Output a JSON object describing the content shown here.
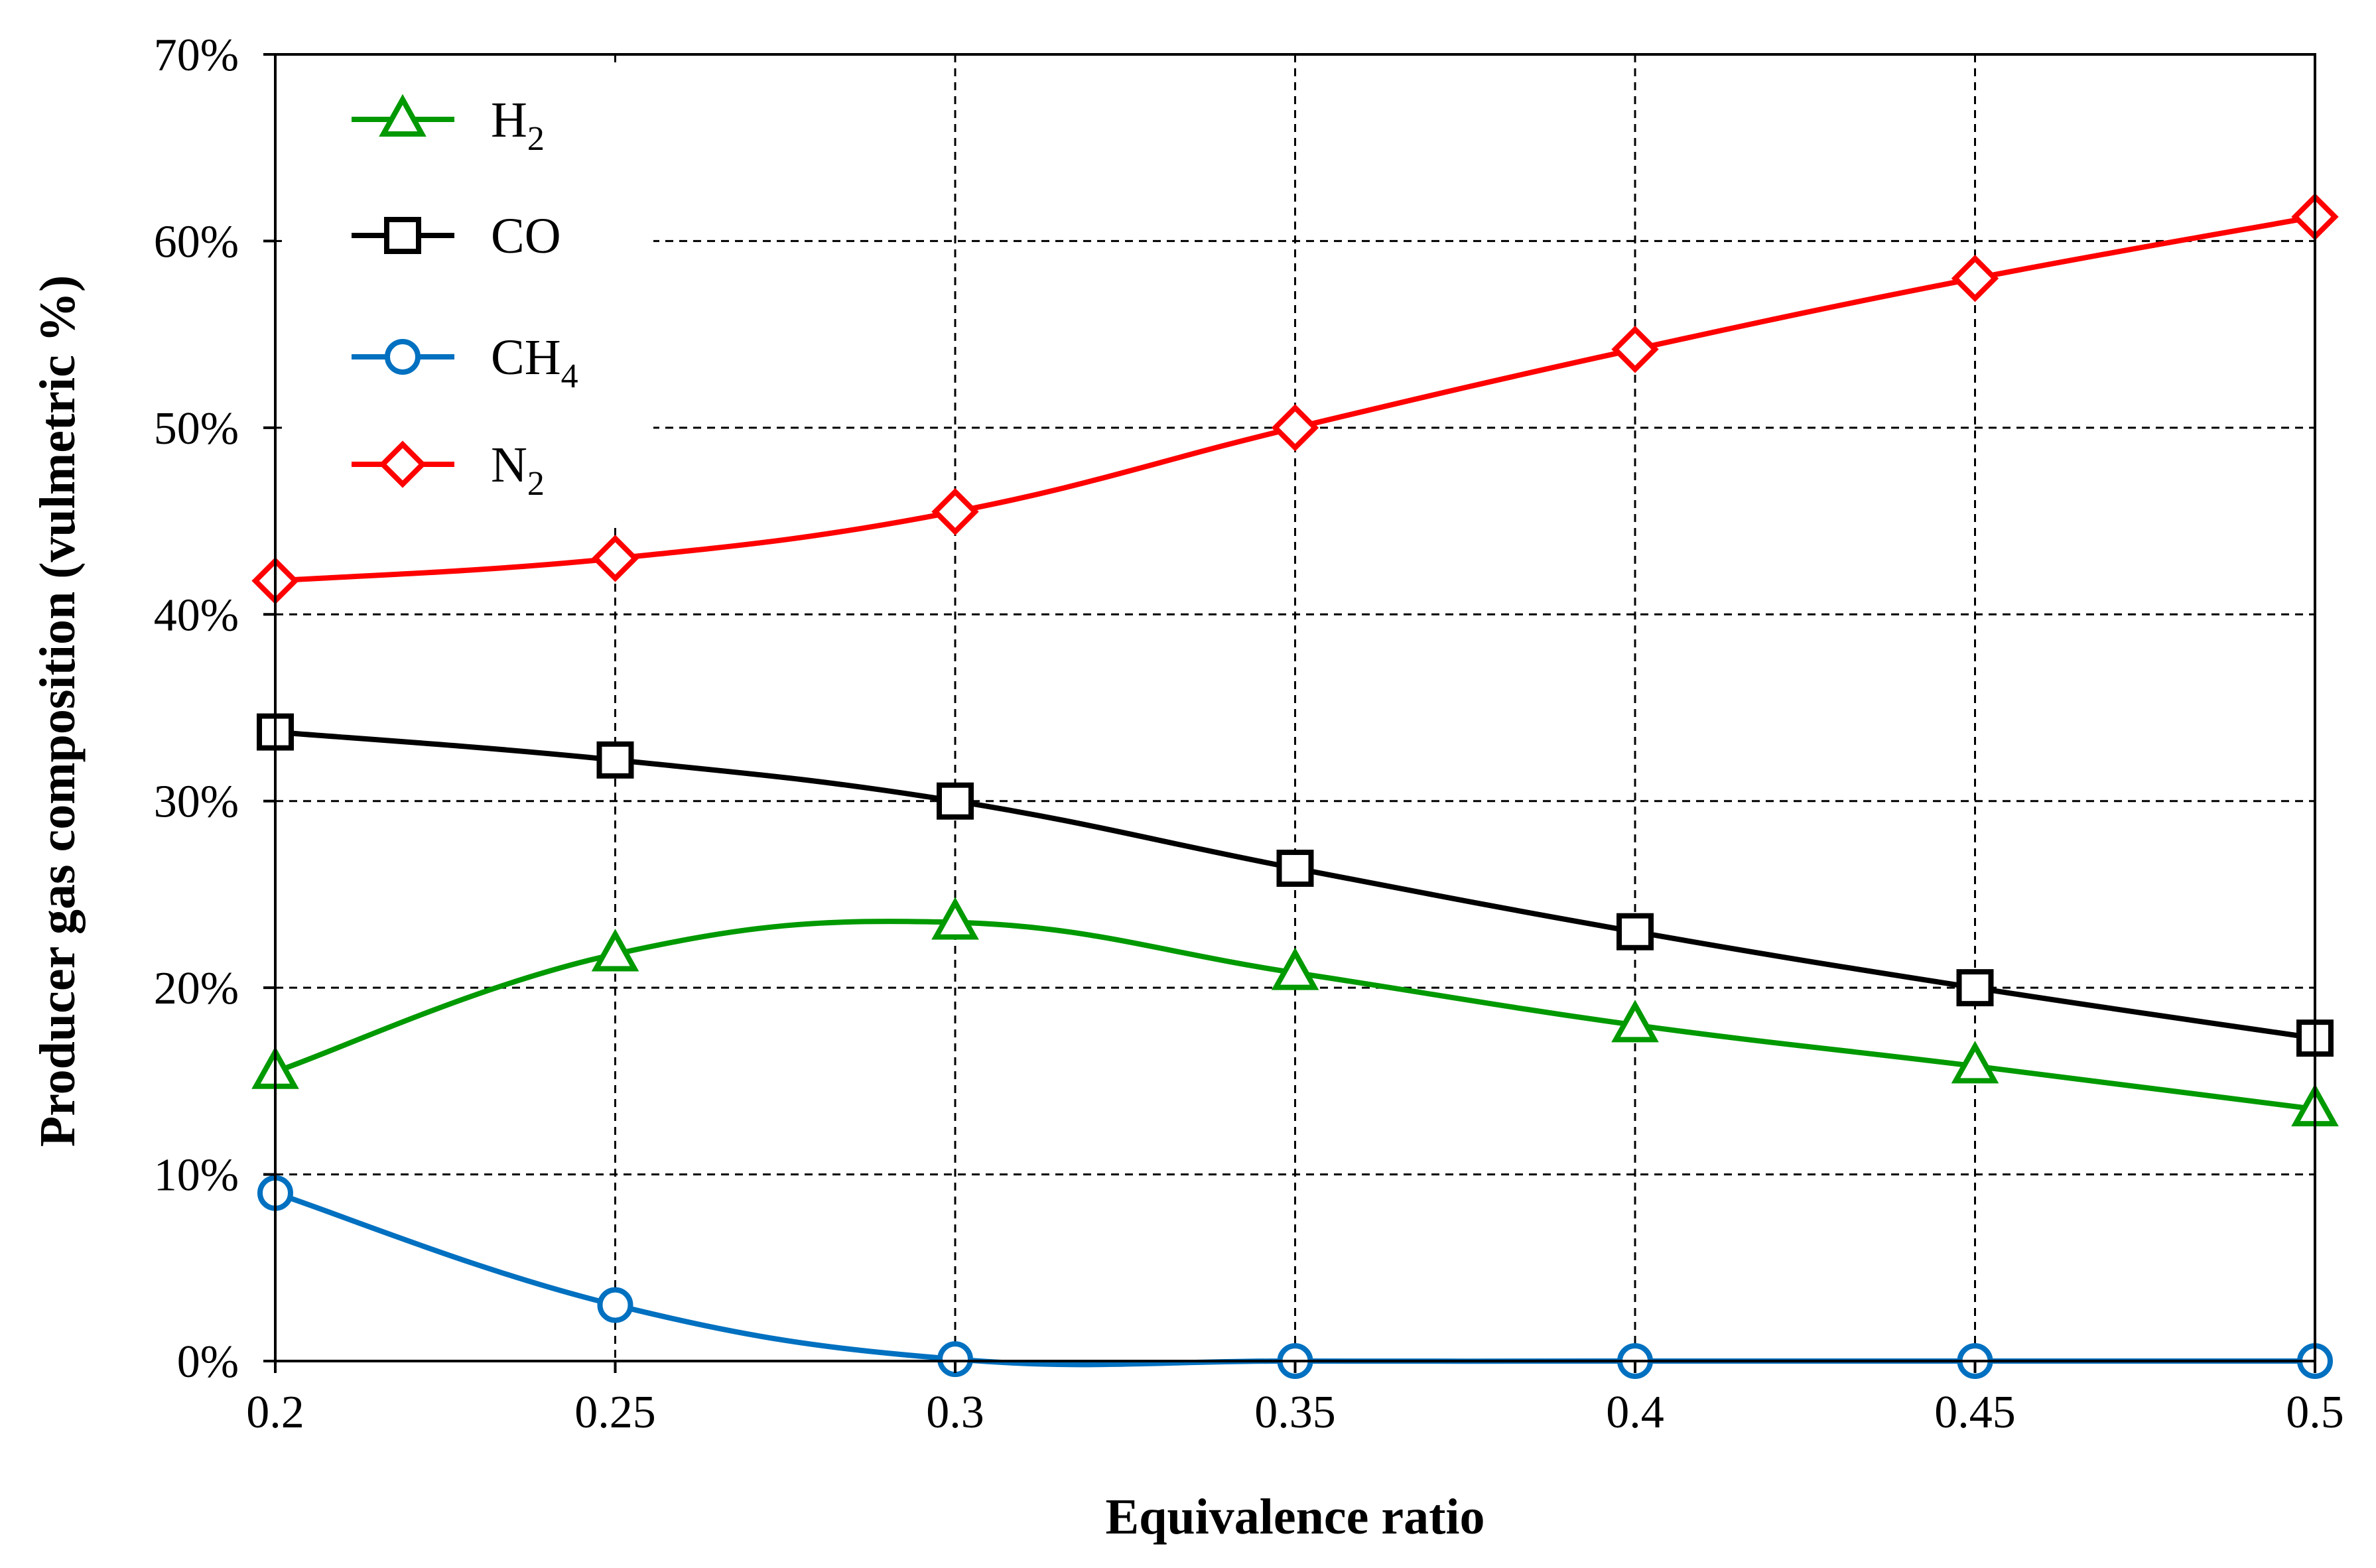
{
  "chart_data": {
    "type": "line",
    "title": "",
    "xlabel": "Equivalence ratio",
    "ylabel": "Producer gas composition (vulmetric %)",
    "x": [
      0.2,
      0.25,
      0.3,
      0.35,
      0.4,
      0.45,
      0.5
    ],
    "x_tick_labels": [
      "0.2",
      "0.25",
      "0.3",
      "0.35",
      "0.4",
      "0.45",
      "0.5"
    ],
    "xlim": [
      0.2,
      0.5
    ],
    "ylim": [
      0,
      70
    ],
    "y_ticks": [
      0,
      10,
      20,
      30,
      40,
      50,
      60,
      70
    ],
    "y_tick_labels": [
      "0%",
      "10%",
      "20%",
      "30%",
      "40%",
      "50%",
      "60%",
      "70%"
    ],
    "grid": true,
    "legend_position": "top-left",
    "series": [
      {
        "name": "H2",
        "label_main": "H",
        "label_sub": "2",
        "color": "#009900",
        "marker": "triangle",
        "values": [
          15.5,
          21.8,
          23.5,
          20.8,
          18.0,
          15.8,
          13.5
        ]
      },
      {
        "name": "CO",
        "label_main": "CO",
        "label_sub": "",
        "color": "#000000",
        "marker": "square",
        "values": [
          33.7,
          32.2,
          30.0,
          26.4,
          23.0,
          20.0,
          17.3
        ]
      },
      {
        "name": "CH4",
        "label_main": "CH",
        "label_sub": "4",
        "color": "#0070C0",
        "marker": "circle",
        "values": [
          9.0,
          3.0,
          0.1,
          0.0,
          0.0,
          0.0,
          0.0
        ]
      },
      {
        "name": "N2",
        "label_main": "N",
        "label_sub": "2",
        "color": "#FF0000",
        "marker": "diamond",
        "values": [
          41.8,
          43.0,
          45.5,
          50.0,
          54.2,
          58.0,
          61.3
        ]
      }
    ]
  }
}
